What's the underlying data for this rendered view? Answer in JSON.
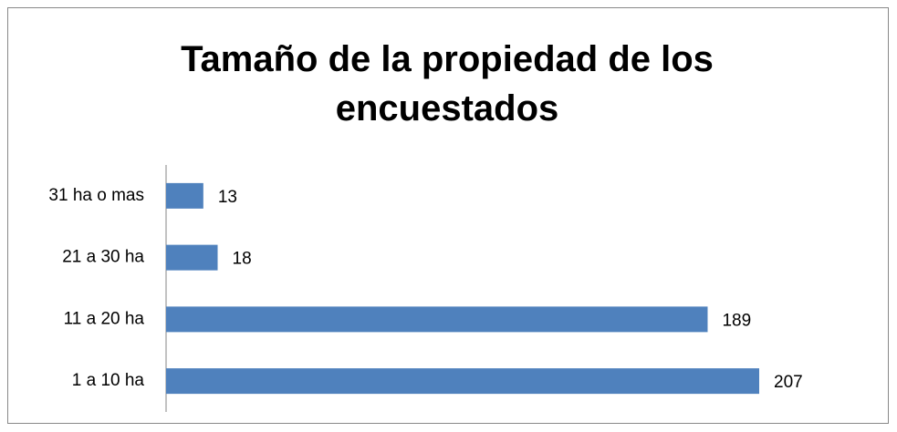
{
  "chart_data": {
    "type": "bar",
    "orientation": "horizontal",
    "title": "Tamaño de la propiedad de los encuestados",
    "categories": [
      "1 a 10 ha",
      "11 a 20 ha",
      "21 a 30 ha",
      "31 ha o mas"
    ],
    "values": [
      207,
      189,
      18,
      13
    ],
    "color": "#4f81bd"
  }
}
